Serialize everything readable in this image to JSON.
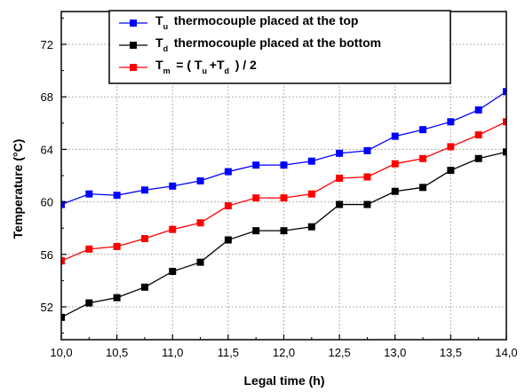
{
  "chart_data": {
    "type": "line",
    "xlabel": "Legal time (h)",
    "ylabel": "Temperature (°C)",
    "xlim": [
      10.0,
      14.0
    ],
    "ylim": [
      49.5,
      74.5
    ],
    "xticks": [
      10.0,
      10.5,
      11.0,
      11.5,
      12.0,
      12.5,
      13.0,
      13.5,
      14.0
    ],
    "xtick_labels": [
      "10,0",
      "10,5",
      "11,0",
      "11,5",
      "12,0",
      "12,5",
      "13,0",
      "13,5",
      "14,0"
    ],
    "yticks": [
      52,
      56,
      60,
      64,
      68,
      72
    ],
    "yticks_labels": [
      "52",
      "56",
      "60",
      "64",
      "68",
      "72"
    ],
    "grid": true,
    "legend_position": "top-center",
    "x": [
      10.0,
      10.25,
      10.5,
      10.75,
      11.0,
      11.25,
      11.5,
      11.75,
      12.0,
      12.25,
      12.5,
      12.75,
      13.0,
      13.25,
      13.5,
      13.75,
      14.0
    ],
    "series": [
      {
        "name": "Tu thermocouple placed at the top",
        "legend_main": "T",
        "legend_sub": "u",
        "legend_rest": "thermocouple placed at the top",
        "color": "#0000ff",
        "values": [
          59.8,
          60.6,
          60.5,
          60.9,
          61.2,
          61.6,
          62.3,
          62.8,
          62.8,
          63.1,
          63.7,
          63.9,
          65.0,
          65.5,
          66.1,
          67.0,
          68.4
        ]
      },
      {
        "name": "Td thermocouple placed at the bottom",
        "legend_main": "T",
        "legend_sub": "d",
        "legend_rest": "thermocouple placed at the bottom",
        "color": "#000000",
        "values": [
          51.2,
          52.3,
          52.7,
          53.5,
          54.7,
          55.4,
          57.1,
          57.8,
          57.8,
          58.1,
          59.8,
          59.8,
          60.8,
          61.1,
          62.4,
          63.3,
          63.8
        ]
      },
      {
        "name": "Tm = ( Tu+Td ) / 2",
        "legend_main": "T",
        "legend_sub": "m",
        "legend_rest": "= ( T",
        "legend_sub2": "u",
        "legend_rest2": "+T",
        "legend_sub3": "d",
        "legend_rest3": ") / 2",
        "color": "#ff0000",
        "values": [
          55.5,
          56.4,
          56.6,
          57.2,
          57.9,
          58.4,
          59.7,
          60.3,
          60.3,
          60.6,
          61.8,
          61.9,
          62.9,
          63.3,
          64.2,
          65.1,
          66.1
        ]
      }
    ]
  }
}
